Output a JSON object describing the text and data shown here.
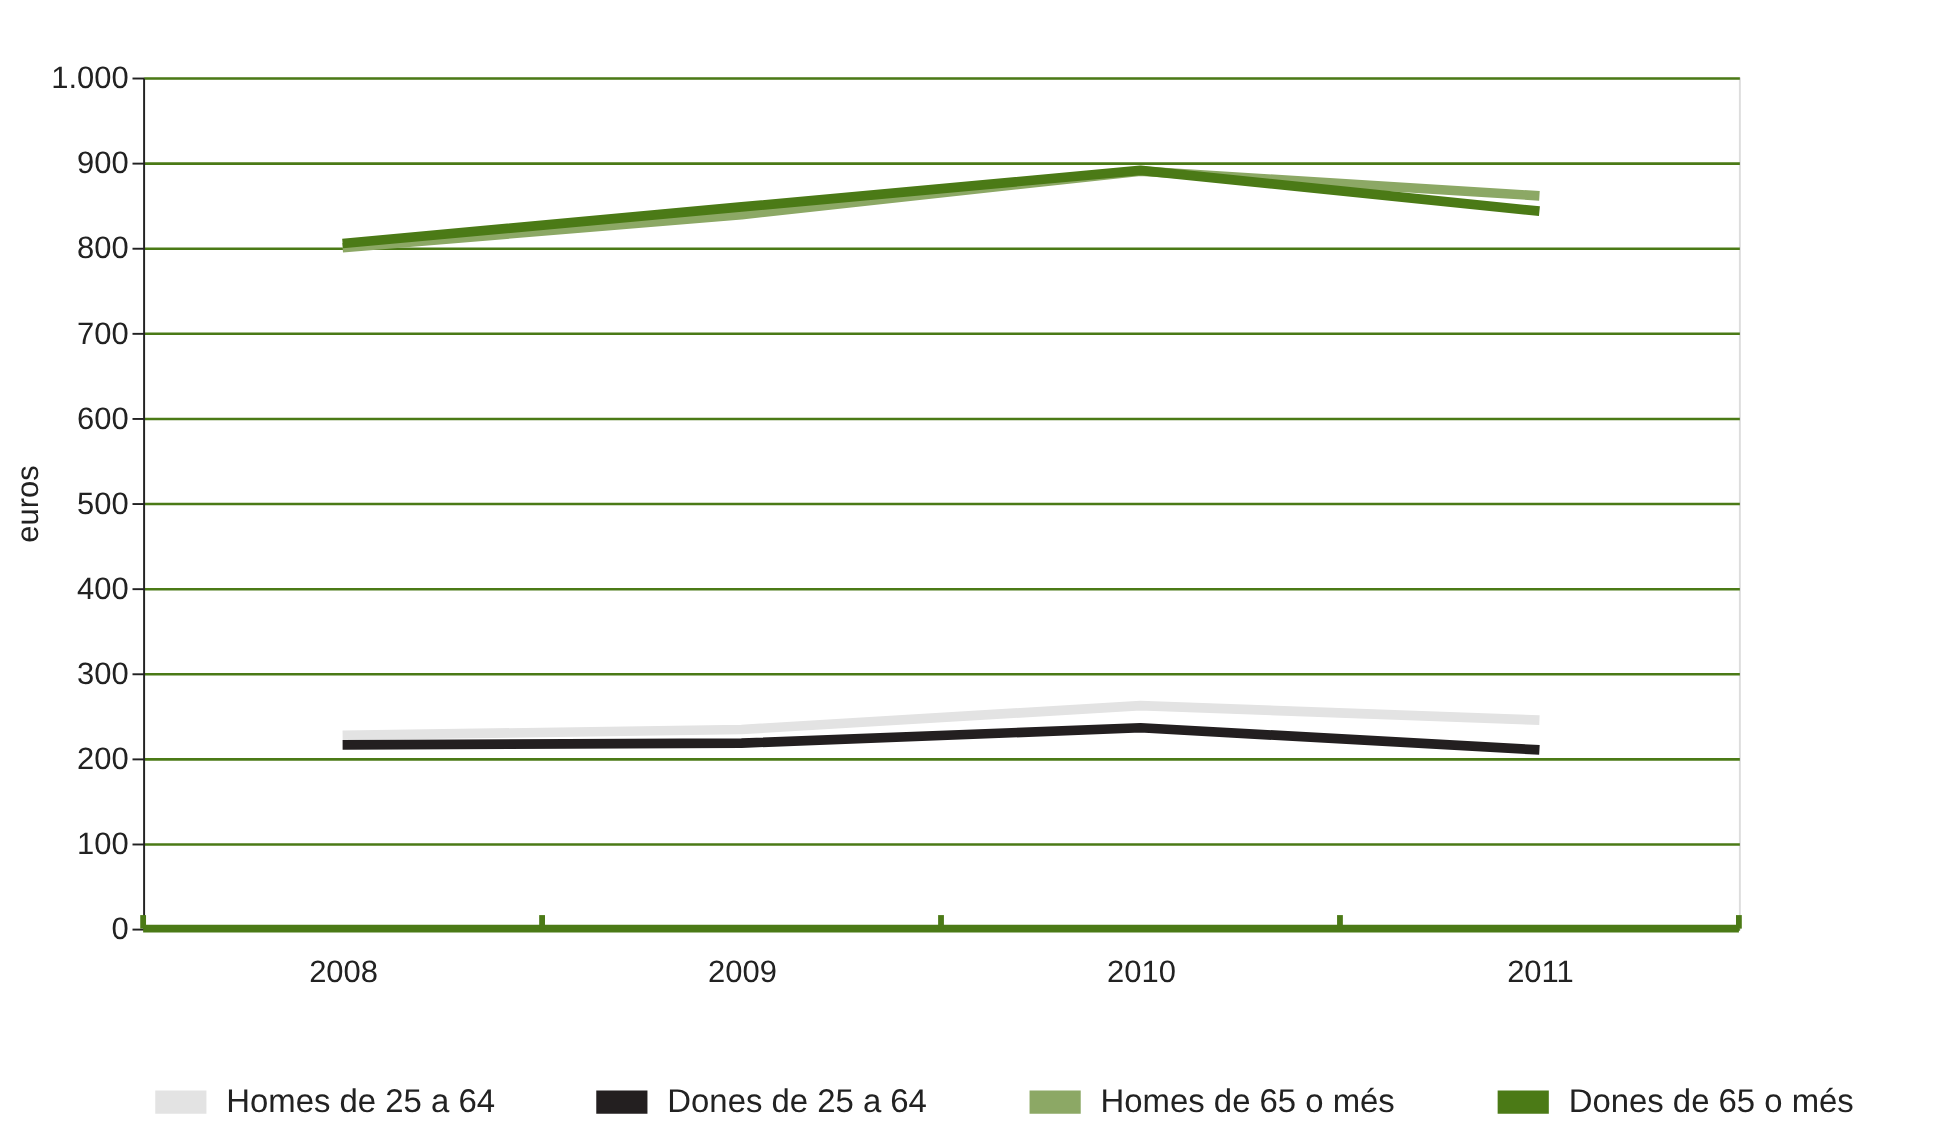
{
  "chart_data": {
    "type": "line",
    "ylabel": "euros",
    "categories": [
      "2008",
      "2009",
      "2010",
      "2011"
    ],
    "series": [
      {
        "name": "Homes de 25 a 64",
        "color": "#e3e3e3",
        "values": [
          227,
          234,
          262,
          245
        ]
      },
      {
        "name": "Dones de 25 a 64",
        "color": "#231f20",
        "values": [
          216,
          218,
          236,
          210
        ]
      },
      {
        "name": "Homes de 65 o més",
        "color": "#8ca865",
        "values": [
          800,
          839,
          890,
          861
        ]
      },
      {
        "name": "Dones  de 65 o més",
        "color": "#4b7a16",
        "values": [
          805,
          848,
          891,
          843
        ]
      }
    ],
    "ylim": [
      0,
      1000
    ],
    "yticks": [
      0,
      100,
      200,
      300,
      400,
      500,
      600,
      700,
      800,
      900,
      {
        "value": 1000,
        "label": "1.000"
      }
    ],
    "grid": "y",
    "legend": "bottom",
    "marker": "none",
    "line_style": "solid"
  }
}
